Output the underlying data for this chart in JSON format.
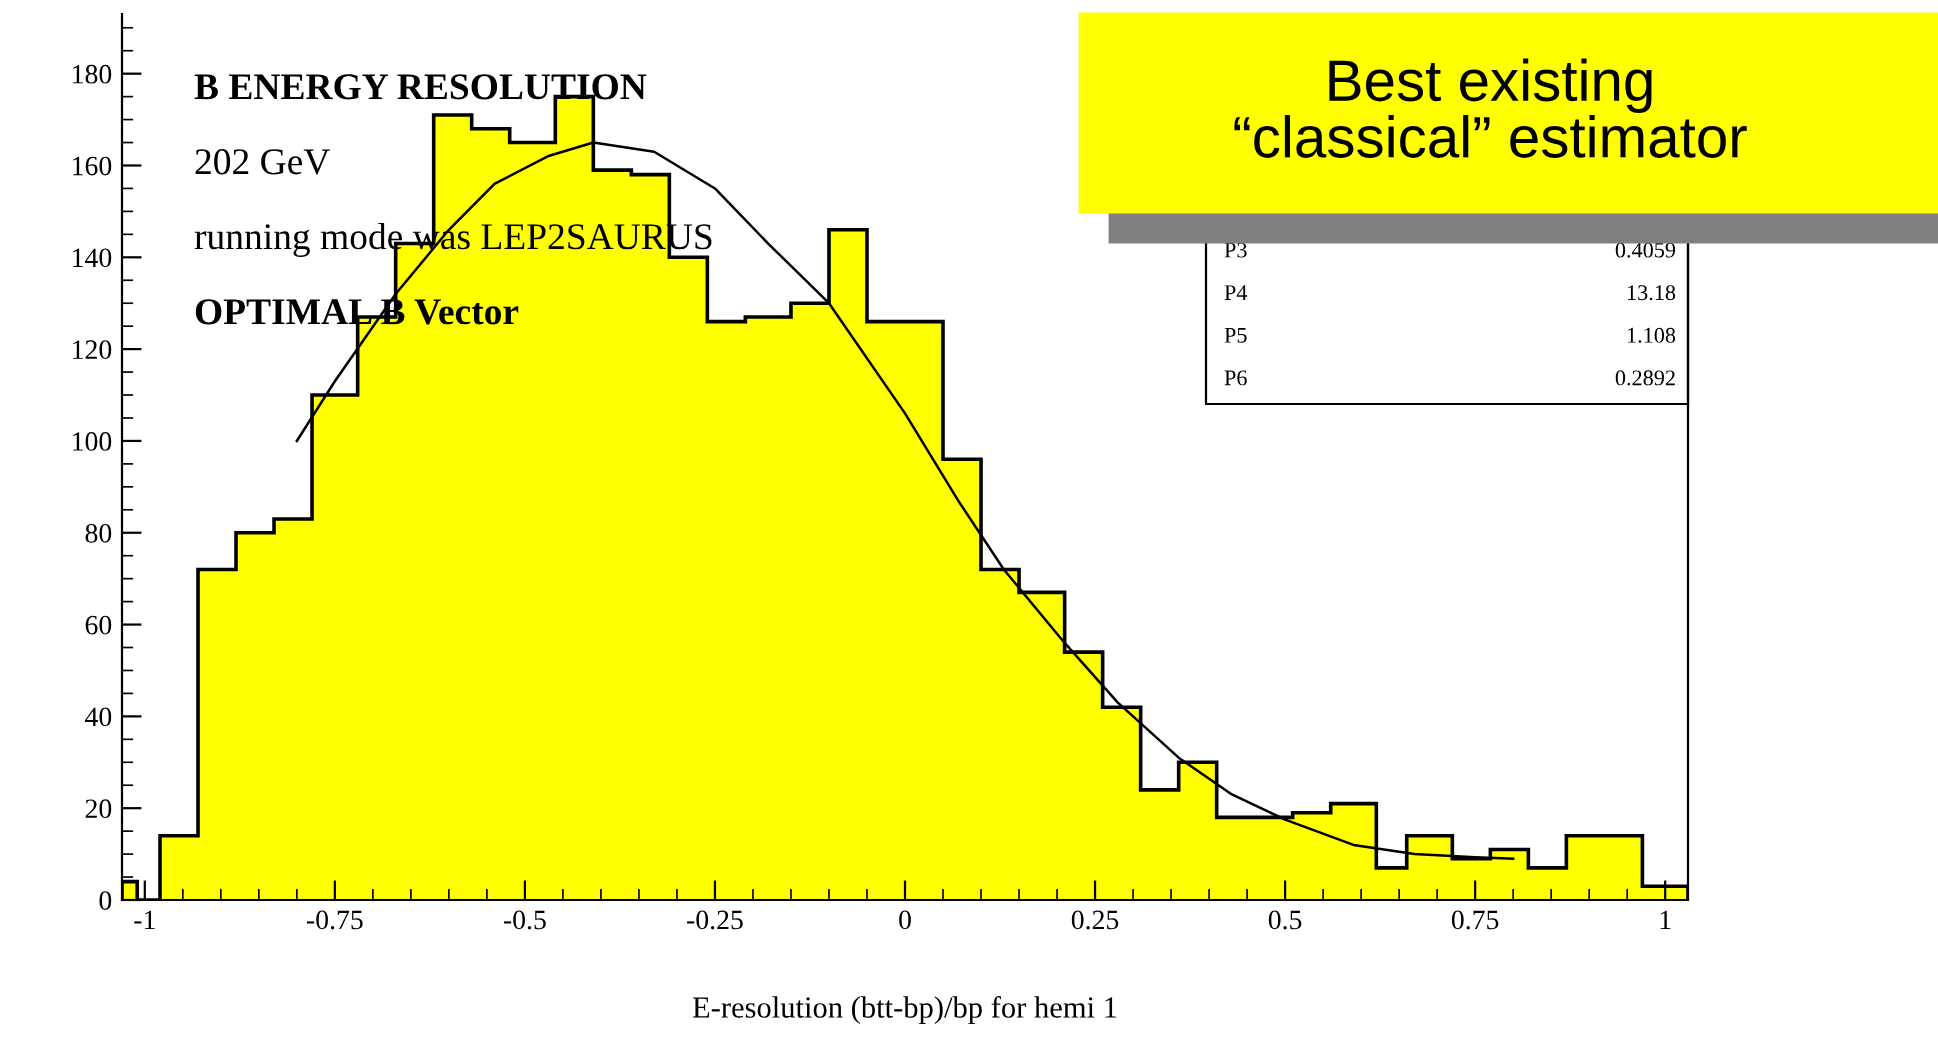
{
  "chart_data": {
    "type": "histogram",
    "xlabel": "E-resolution (btt-bp)/bp for hemi 1",
    "bins": [
      -1.03,
      -1.01,
      -0.98,
      -0.93,
      -0.88,
      -0.83,
      -0.78,
      -0.72,
      -0.67,
      -0.62,
      -0.57,
      -0.52,
      -0.46,
      -0.41,
      -0.36,
      -0.31,
      -0.26,
      -0.21,
      -0.15,
      -0.1,
      -0.05,
      0.0,
      0.05,
      0.1,
      0.15,
      0.21,
      0.26,
      0.31,
      0.36,
      0.41,
      0.46,
      0.51,
      0.56,
      0.62,
      0.66,
      0.72,
      0.77,
      0.82,
      0.87,
      0.92,
      0.97,
      1.03
    ],
    "values": [
      4,
      0,
      14,
      72,
      80,
      83,
      110,
      127,
      143,
      171,
      168,
      165,
      175,
      159,
      158,
      140,
      126,
      127,
      130,
      146,
      126,
      126,
      96,
      72,
      67,
      54,
      42,
      24,
      30,
      18,
      18,
      19,
      21,
      7,
      14,
      9,
      11,
      7,
      14,
      14,
      3
    ],
    "color": "#ffff00",
    "series": [
      {
        "type": "line",
        "color": "#000000",
        "x": [
          -0.8,
          -0.75,
          -0.67,
          -0.6,
          -0.54,
          -0.47,
          -0.41,
          -0.33,
          -0.25,
          -0.18,
          -0.1,
          0,
          0.07,
          0.13,
          0.21,
          0.28,
          0.36,
          0.43,
          0.5,
          0.59,
          0.67,
          0.75,
          0.8
        ],
        "values": [
          100,
          113,
          132,
          146,
          156,
          162,
          165,
          163,
          155,
          143,
          130,
          106,
          87,
          72,
          56,
          43,
          31,
          23,
          17.5,
          12,
          10,
          9.3,
          9
        ]
      }
    ],
    "xlim": [
      -1.03,
      1.03
    ],
    "ylim": [
      0,
      193
    ],
    "xticks": [
      -1,
      -0.75,
      -0.5,
      -0.25,
      0,
      0.25,
      0.5,
      0.75,
      1
    ],
    "yticks": [
      0,
      20,
      40,
      60,
      80,
      100,
      120,
      140,
      160,
      180
    ],
    "grid": false,
    "annotations": [
      "B ENERGY RESOLUTION",
      "202 GeV",
      "running mode was LEP2SAURUS",
      "OPTIMAL B Vector",
      "Best existing\n“classical” estimator",
      "P3",
      "0.4059",
      "P4",
      "13.18",
      "P5",
      "1.108",
      "P6",
      "0.2892"
    ]
  }
}
